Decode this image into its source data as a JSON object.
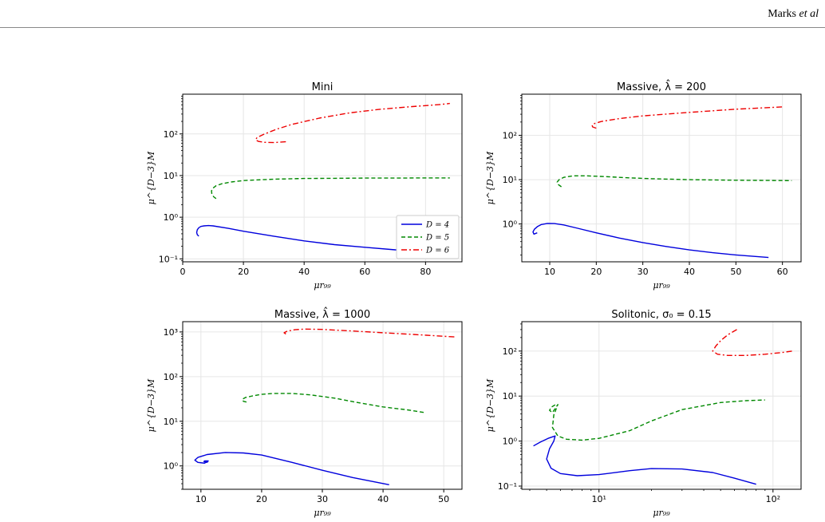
{
  "header": {
    "author": "Marks",
    "etal": "et al"
  },
  "colors": {
    "D4": "#0000dd",
    "D5": "#008800",
    "D6": "#ee0000",
    "grid": "#e6e6e6"
  },
  "chart_data": [
    {
      "type": "line",
      "title": "Mini",
      "xlabel": "μr₉₉",
      "ylabel": "μ^{D−3}M",
      "xscale": "linear",
      "yscale": "log",
      "xlim": [
        0,
        92
      ],
      "ylim": [
        0.085,
        900
      ],
      "xticks": [
        0,
        20,
        40,
        60,
        80
      ],
      "yticks": [
        0.1,
        1,
        10,
        100
      ],
      "ytick_labels": [
        "10⁻¹",
        "10⁰",
        "10¹",
        "10²"
      ],
      "grid": true,
      "legend": {
        "position": "lower-right",
        "entries": [
          "D = 4",
          "D = 5",
          "D = 6"
        ]
      },
      "series": [
        {
          "name": "D = 4",
          "style": "solid",
          "x": [
            5.3,
            4.8,
            4.6,
            4.8,
            5.3,
            6.0,
            7.0,
            8.5,
            10,
            15,
            20,
            30,
            40,
            50,
            60,
            70,
            80,
            88
          ],
          "y": [
            0.35,
            0.38,
            0.43,
            0.5,
            0.56,
            0.6,
            0.62,
            0.63,
            0.62,
            0.54,
            0.46,
            0.35,
            0.27,
            0.22,
            0.19,
            0.165,
            0.145,
            0.13
          ]
        },
        {
          "name": "D = 5",
          "style": "dashed",
          "x": [
            11,
            10.2,
            9.6,
            9.5,
            10,
            11,
            13,
            16,
            20,
            30,
            40,
            50,
            60,
            70,
            80,
            88
          ],
          "y": [
            2.8,
            3.1,
            3.6,
            4.3,
            5.0,
            5.7,
            6.4,
            7.0,
            7.6,
            8.2,
            8.5,
            8.6,
            8.7,
            8.7,
            8.8,
            8.8
          ]
        },
        {
          "name": "D = 6",
          "style": "dashdot",
          "x": [
            34,
            30,
            27,
            25,
            24,
            24.5,
            27,
            31,
            36,
            45,
            55,
            65,
            75,
            85,
            88
          ],
          "y": [
            65,
            62,
            63,
            66,
            72,
            82,
            100,
            130,
            170,
            240,
            320,
            390,
            450,
            510,
            540
          ]
        }
      ]
    },
    {
      "type": "line",
      "title": "Massive, λ̂ = 200",
      "xlabel": "μr₉₉",
      "ylabel": "μ^{D−3}M",
      "xscale": "linear",
      "yscale": "log",
      "xlim": [
        4,
        64
      ],
      "ylim": [
        0.14,
        850
      ],
      "xticks": [
        10,
        20,
        30,
        40,
        50,
        60
      ],
      "yticks": [
        1,
        10,
        100
      ],
      "ytick_labels": [
        "10⁰",
        "10¹",
        "10²"
      ],
      "grid": true,
      "series": [
        {
          "name": "D = 4",
          "style": "solid",
          "x": [
            7.3,
            6.6,
            6.4,
            6.7,
            7.4,
            8.2,
            9.5,
            11,
            13,
            16,
            20,
            25,
            30,
            35,
            40,
            45,
            50,
            57
          ],
          "y": [
            0.63,
            0.59,
            0.66,
            0.76,
            0.88,
            0.97,
            1.03,
            1.02,
            0.95,
            0.8,
            0.63,
            0.48,
            0.38,
            0.31,
            0.26,
            0.225,
            0.2,
            0.175
          ]
        },
        {
          "name": "D = 5",
          "style": "dashed",
          "x": [
            12.5,
            11.8,
            11.6,
            12.0,
            13,
            15,
            18,
            22,
            27,
            32,
            40,
            50,
            62
          ],
          "y": [
            6.9,
            7.8,
            8.8,
            10,
            11.3,
            12.2,
            12.2,
            11.7,
            11.0,
            10.5,
            10.0,
            9.7,
            9.5
          ]
        },
        {
          "name": "D = 6",
          "style": "dashdot",
          "x": [
            20,
            19.2,
            19.1,
            19.6,
            21,
            25,
            30,
            40,
            50,
            60
          ],
          "y": [
            145,
            155,
            170,
            185,
            205,
            240,
            275,
            330,
            390,
            440
          ]
        }
      ]
    },
    {
      "type": "line",
      "title": "Massive, λ̂ = 1000",
      "xlabel": "μr₉₉",
      "ylabel": "μ^{D−3}M",
      "xscale": "linear",
      "yscale": "log",
      "xlim": [
        7,
        53
      ],
      "ylim": [
        0.3,
        1700
      ],
      "xticks": [
        10,
        20,
        30,
        40,
        50
      ],
      "yticks": [
        1,
        10,
        100,
        1000
      ],
      "ytick_labels": [
        "10⁰",
        "10¹",
        "10²",
        "10³"
      ],
      "grid": true,
      "series": [
        {
          "name": "D = 4",
          "style": "solid",
          "x": [
            11.2,
            10.9,
            10.5,
            10.6,
            11.2,
            10.6,
            9.5,
            9.0,
            9.5,
            11,
            14,
            17,
            20,
            25,
            30,
            35,
            41
          ],
          "y": [
            1.25,
            1.2,
            1.25,
            1.3,
            1.3,
            1.15,
            1.2,
            1.35,
            1.55,
            1.8,
            2.0,
            1.95,
            1.75,
            1.2,
            0.8,
            0.55,
            0.38
          ]
        },
        {
          "name": "D = 5",
          "style": "dashed",
          "x": [
            17.5,
            17.0,
            16.8,
            17.3,
            18.5,
            20,
            22,
            25,
            28,
            32,
            36,
            40,
            44,
            47
          ],
          "y": [
            27,
            28,
            31,
            34,
            37,
            40,
            42,
            42,
            39,
            33,
            26,
            21,
            18,
            15.5
          ]
        },
        {
          "name": "D = 6",
          "style": "dashdot",
          "x": [
            24,
            23.7,
            24.2,
            25.5,
            27,
            30,
            35,
            40,
            45,
            50,
            52
          ],
          "y": [
            900,
            960,
            1040,
            1120,
            1160,
            1140,
            1050,
            960,
            880,
            800,
            770
          ]
        }
      ]
    },
    {
      "type": "line",
      "title": "Solitonic, σ₀ = 0.15",
      "xlabel": "μr₉₉",
      "ylabel": "μ^{D−3}M",
      "xscale": "log",
      "yscale": "log",
      "xlim": [
        3.6,
        145
      ],
      "ylim": [
        0.085,
        450
      ],
      "xticks": [
        10,
        100
      ],
      "xtick_labels": [
        "10¹",
        "10²"
      ],
      "yticks": [
        0.1,
        1,
        10,
        100
      ],
      "ytick_labels": [
        "10⁻¹",
        "10⁰",
        "10¹",
        "10²"
      ],
      "grid": true,
      "series": [
        {
          "name": "D = 4",
          "style": "solid",
          "x": [
            4.2,
            4.6,
            5.1,
            5.6,
            5.5,
            5.2,
            5.0,
            5.3,
            6,
            7.5,
            10,
            15,
            20,
            30,
            45,
            60,
            80
          ],
          "y": [
            0.78,
            0.95,
            1.15,
            1.3,
            1.0,
            0.68,
            0.4,
            0.25,
            0.19,
            0.17,
            0.18,
            0.22,
            0.245,
            0.24,
            0.2,
            0.15,
            0.11
          ]
        },
        {
          "name": "D = 5",
          "style": "dashed",
          "x": [
            5.6,
            5.3,
            5.2,
            5.4,
            5.8,
            5.5,
            5.4,
            5.8,
            6.5,
            8,
            10,
            15,
            20,
            30,
            50,
            70,
            90
          ],
          "y": [
            6.4,
            5.6,
            4.8,
            4.3,
            6.5,
            3.8,
            2.0,
            1.3,
            1.1,
            1.05,
            1.15,
            1.7,
            2.8,
            5.0,
            7.2,
            7.9,
            8.2
          ]
        },
        {
          "name": "D = 6",
          "style": "dashdot",
          "x": [
            62,
            55,
            50,
            47,
            45,
            48,
            55,
            70,
            90,
            110,
            130
          ],
          "y": [
            300,
            230,
            170,
            130,
            100,
            85,
            80,
            80,
            85,
            92,
            100
          ]
        }
      ]
    }
  ]
}
